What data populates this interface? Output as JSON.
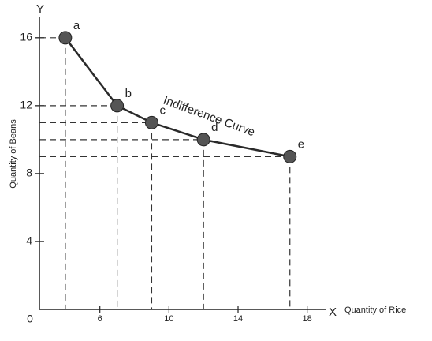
{
  "chart_data": {
    "type": "line",
    "x": [
      4,
      7,
      9,
      12,
      17
    ],
    "series": [
      {
        "values": [
          16,
          12,
          11,
          10,
          9
        ],
        "color": "#2a2a2a"
      }
    ],
    "point_labels": [
      "a",
      "b",
      "c",
      "d",
      "e"
    ],
    "xlim": [
      2.5,
      18.7
    ],
    "xticks": [
      6,
      10,
      14,
      18
    ],
    "ylim": [
      0,
      17.2
    ],
    "yticks": [
      4,
      8,
      12,
      16
    ],
    "origin_label": "0",
    "x_axis_letter": "X",
    "y_axis_letter": "Y",
    "xlabel": "Quantity of Rice",
    "ylabel": "Quantity of Beans",
    "annotation": "Indifference Curve",
    "guides": true
  }
}
